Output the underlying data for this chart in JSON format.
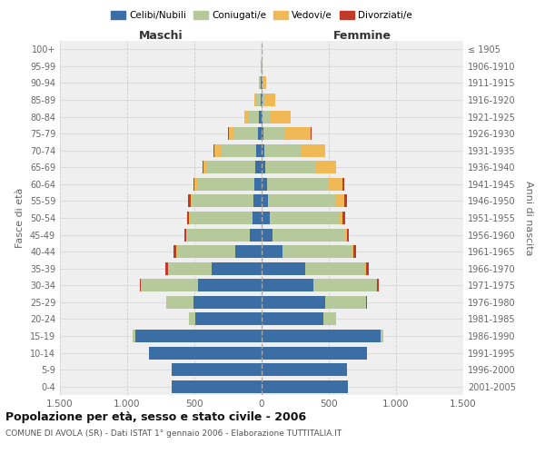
{
  "age_groups": [
    "0-4",
    "5-9",
    "10-14",
    "15-19",
    "20-24",
    "25-29",
    "30-34",
    "35-39",
    "40-44",
    "45-49",
    "50-54",
    "55-59",
    "60-64",
    "65-69",
    "70-74",
    "75-79",
    "80-84",
    "85-89",
    "90-94",
    "95-99",
    "100+"
  ],
  "birth_years": [
    "2001-2005",
    "1996-2000",
    "1991-1995",
    "1986-1990",
    "1981-1985",
    "1976-1980",
    "1971-1975",
    "1966-1970",
    "1961-1965",
    "1956-1960",
    "1951-1955",
    "1946-1950",
    "1941-1945",
    "1936-1940",
    "1931-1935",
    "1926-1930",
    "1921-1925",
    "1916-1920",
    "1911-1915",
    "1906-1910",
    "≤ 1905"
  ],
  "maschi": {
    "celibi": [
      670,
      670,
      840,
      940,
      490,
      510,
      470,
      370,
      195,
      88,
      65,
      58,
      52,
      48,
      38,
      28,
      18,
      10,
      5,
      3,
      2
    ],
    "coniugati": [
      0,
      0,
      0,
      18,
      48,
      195,
      425,
      325,
      435,
      465,
      465,
      462,
      425,
      355,
      265,
      178,
      80,
      28,
      8,
      2,
      0
    ],
    "vedovi": [
      0,
      0,
      0,
      0,
      2,
      2,
      2,
      3,
      5,
      5,
      8,
      10,
      20,
      30,
      50,
      40,
      30,
      15,
      5,
      2,
      0
    ],
    "divorziati": [
      0,
      0,
      0,
      0,
      3,
      5,
      10,
      15,
      20,
      15,
      15,
      20,
      8,
      5,
      5,
      5,
      0,
      0,
      0,
      0,
      0
    ]
  },
  "femmine": {
    "nubili": [
      645,
      638,
      785,
      885,
      462,
      472,
      382,
      325,
      155,
      78,
      58,
      48,
      38,
      28,
      18,
      12,
      8,
      4,
      4,
      2,
      2
    ],
    "coniugate": [
      0,
      0,
      0,
      18,
      88,
      305,
      475,
      445,
      515,
      535,
      515,
      505,
      465,
      375,
      275,
      158,
      58,
      18,
      4,
      2,
      0
    ],
    "vedove": [
      0,
      0,
      0,
      2,
      2,
      2,
      3,
      5,
      10,
      20,
      30,
      60,
      100,
      148,
      178,
      198,
      148,
      78,
      24,
      4,
      0
    ],
    "divorziate": [
      0,
      0,
      0,
      0,
      2,
      5,
      10,
      25,
      25,
      15,
      20,
      25,
      15,
      5,
      5,
      5,
      0,
      0,
      0,
      0,
      0
    ]
  },
  "colors": {
    "celibi_nubili": "#3a6ea5",
    "coniugati": "#b5c99a",
    "vedovi": "#f0b955",
    "divorziati": "#c0392b"
  },
  "xlim": 1500,
  "title": "Popolazione per età, sesso e stato civile - 2006",
  "subtitle": "COMUNE DI AVOLA (SR) - Dati ISTAT 1° gennaio 2006 - Elaborazione TUTTITALIA.IT",
  "ylabel_left": "Fasce di età",
  "ylabel_right": "Anni di nascita",
  "xlabel_maschi": "Maschi",
  "xlabel_femmine": "Femmine",
  "bg_color": "#efefef"
}
